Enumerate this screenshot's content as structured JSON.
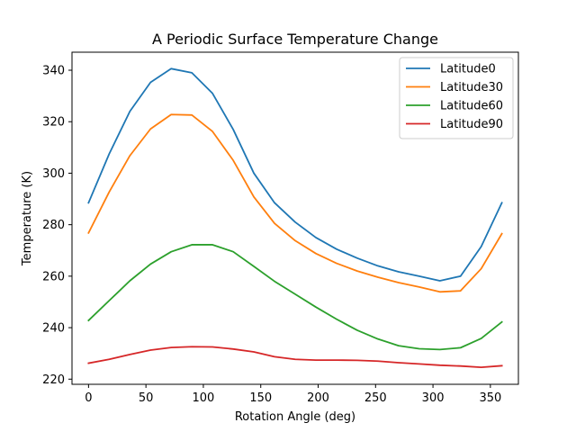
{
  "chart_data": {
    "type": "line",
    "title": "A Periodic Surface Temperature Change",
    "xlabel": "Rotation Angle (deg)",
    "ylabel": "Temperature (K)",
    "xlim": [
      -14.4,
      374.4
    ],
    "ylim": [
      218,
      347
    ],
    "xticks": [
      0,
      50,
      100,
      150,
      200,
      250,
      300,
      350
    ],
    "yticks": [
      220,
      240,
      260,
      280,
      300,
      320,
      340
    ],
    "grid": false,
    "legend_position": "upper right",
    "x": [
      0,
      18,
      36,
      54,
      72,
      90,
      108,
      126,
      144,
      162,
      180,
      198,
      216,
      234,
      252,
      270,
      288,
      306,
      324,
      342,
      360
    ],
    "series": [
      {
        "name": "Latitude0",
        "color": "#1f77b4",
        "values": [
          288.5,
          307.5,
          324,
          335.3,
          340.6,
          339,
          331,
          317,
          300,
          288.5,
          281,
          275,
          270.5,
          267,
          264,
          261.7,
          260,
          258.2,
          260,
          271.5,
          288.5
        ]
      },
      {
        "name": "Latitude30",
        "color": "#ff7f0e",
        "values": [
          276.8,
          292.7,
          306.8,
          317.2,
          322.8,
          322.6,
          316.2,
          305,
          290.8,
          280.5,
          273.8,
          268.8,
          265,
          262,
          259.6,
          257.5,
          255.8,
          253.9,
          254.3,
          262.9,
          276.5
        ]
      },
      {
        "name": "Latitude60",
        "color": "#2ca02c",
        "values": [
          242.8,
          250.5,
          258.2,
          264.7,
          269.5,
          272.2,
          272.2,
          269.5,
          263.8,
          258,
          253,
          248,
          243.3,
          239,
          235.6,
          233,
          231.8,
          231.5,
          232.2,
          235.8,
          242.2
        ]
      },
      {
        "name": "Latitude90",
        "color": "#d62728",
        "values": [
          226.2,
          227.7,
          229.6,
          231.3,
          232.3,
          232.6,
          232.5,
          231.7,
          230.6,
          228.7,
          227.7,
          227.4,
          227.4,
          227.3,
          227,
          226.4,
          225.9,
          225.4,
          225.1,
          224.6,
          225.2
        ]
      }
    ]
  }
}
